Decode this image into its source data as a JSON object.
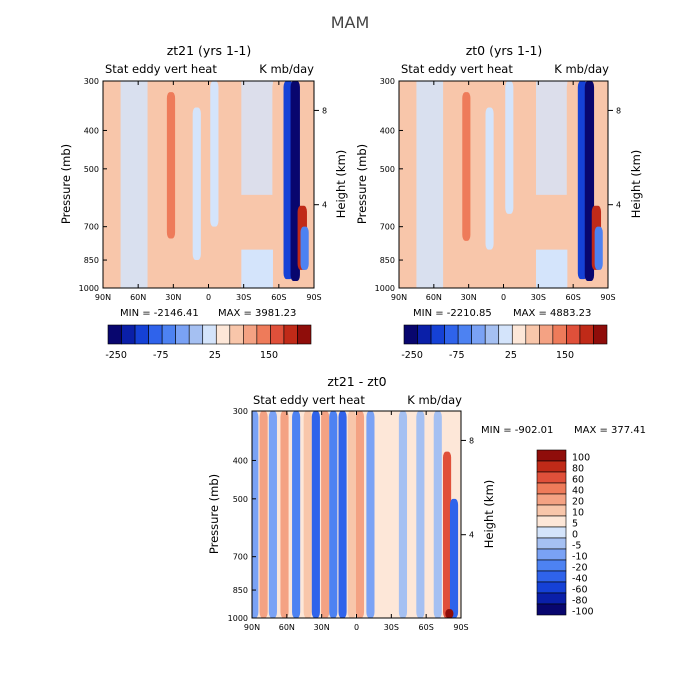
{
  "figure": {
    "title": "MAM"
  },
  "colors": {
    "scale": [
      "#08066e",
      "#0a1fa8",
      "#1541d6",
      "#2f63eb",
      "#4d82f2",
      "#7aa2f5",
      "#a5c0f2",
      "#d4e4fb",
      "#fde7d8",
      "#f8c6aa",
      "#f4a283",
      "#ee7b5a",
      "#e0503a",
      "#c02a18",
      "#8f0d0a"
    ]
  },
  "chart_data": [
    {
      "type": "heatmap",
      "id": "p1",
      "title": "zt21 (yrs 1-1)",
      "subtitle_left": "Stat eddy vert heat",
      "subtitle_right": "K mb/day",
      "xlabel": "",
      "ylabel": "Pressure (mb)",
      "y2label": "Height (km)",
      "x_ticks": [
        "90N",
        "60N",
        "30N",
        "0",
        "30S",
        "60S",
        "90S"
      ],
      "x_range": [
        90,
        -90
      ],
      "y_ticks": [
        "300",
        "400",
        "500",
        "700",
        "850",
        "1000"
      ],
      "y_range_mb": [
        300,
        1000
      ],
      "y_scale": "log",
      "y2_ticks": [
        "8",
        "4"
      ],
      "min_label": "MIN = -2146.41",
      "max_label": "MAX = 3981.23",
      "colorbar_labels": [
        "-250",
        "-75",
        "25",
        "150"
      ],
      "features": [
        {
          "lat": 32,
          "p_range": [
            320,
            750
          ],
          "value": 60
        },
        {
          "lat": 20,
          "p_range": [
            550,
            900
          ],
          "value": 15
        },
        {
          "lat": 10,
          "p_range": [
            350,
            850
          ],
          "value": -10
        },
        {
          "lat": -5,
          "p_range": [
            300,
            700
          ],
          "value": -15
        },
        {
          "lat": -58,
          "p_range": [
            300,
            700
          ],
          "value": 15
        },
        {
          "lat": -68,
          "p_range": [
            300,
            950
          ],
          "value": -150
        },
        {
          "lat": -74,
          "p_range": [
            300,
            960
          ],
          "value": -250
        },
        {
          "lat": -80,
          "p_range": [
            620,
            900
          ],
          "value": 150
        },
        {
          "lat": -82,
          "p_range": [
            700,
            900
          ],
          "value": -80
        }
      ]
    },
    {
      "type": "heatmap",
      "id": "p2",
      "title": "zt0 (yrs 1-1)",
      "subtitle_left": "Stat eddy vert heat",
      "subtitle_right": "K mb/day",
      "xlabel": "",
      "ylabel": "Pressure (mb)",
      "y2label": "Height (km)",
      "x_ticks": [
        "90N",
        "60N",
        "30N",
        "0",
        "30S",
        "60S",
        "90S"
      ],
      "x_range": [
        90,
        -90
      ],
      "y_ticks": [
        "300",
        "400",
        "500",
        "700",
        "850",
        "1000"
      ],
      "y_range_mb": [
        300,
        1000
      ],
      "y_scale": "log",
      "y2_ticks": [
        "8",
        "4"
      ],
      "min_label": "MIN = -2210.85",
      "max_label": "MAX = 4883.23",
      "colorbar_labels": [
        "-250",
        "-75",
        "25",
        "150"
      ],
      "features": [
        {
          "lat": 32,
          "p_range": [
            320,
            760
          ],
          "value": 70
        },
        {
          "lat": 20,
          "p_range": [
            550,
            900
          ],
          "value": 15
        },
        {
          "lat": 12,
          "p_range": [
            350,
            800
          ],
          "value": -10
        },
        {
          "lat": -5,
          "p_range": [
            300,
            650
          ],
          "value": -10
        },
        {
          "lat": -58,
          "p_range": [
            300,
            700
          ],
          "value": 15
        },
        {
          "lat": -68,
          "p_range": [
            300,
            950
          ],
          "value": -150
        },
        {
          "lat": -74,
          "p_range": [
            300,
            960
          ],
          "value": -250
        },
        {
          "lat": -80,
          "p_range": [
            620,
            900
          ],
          "value": 150
        },
        {
          "lat": -82,
          "p_range": [
            700,
            900
          ],
          "value": -80
        }
      ]
    },
    {
      "type": "heatmap",
      "id": "p3",
      "title": "zt21 - zt0",
      "subtitle_left": "Stat eddy vert heat",
      "subtitle_right": "K mb/day",
      "xlabel": "",
      "ylabel": "Pressure (mb)",
      "y2label": "Height (km)",
      "x_ticks": [
        "90N",
        "60N",
        "30N",
        "0",
        "30S",
        "60S",
        "90S"
      ],
      "x_range": [
        90,
        -90
      ],
      "y_ticks": [
        "300",
        "400",
        "500",
        "700",
        "850",
        "1000"
      ],
      "y_range_mb": [
        300,
        1000
      ],
      "y_scale": "log",
      "y2_ticks": [
        "8",
        "4"
      ],
      "min_label": "MIN = -902.01",
      "max_label": "MAX = 377.41",
      "colorbar_labels": [
        "100",
        "80",
        "60",
        "40",
        "20",
        "10",
        "5",
        "0",
        "-5",
        "-10",
        "-20",
        "-40",
        "-60",
        "-80",
        "-100"
      ],
      "features": [
        {
          "lat": 88,
          "p_range": [
            300,
            1000
          ],
          "value": -15
        },
        {
          "lat": 80,
          "p_range": [
            300,
            1000
          ],
          "value": 20
        },
        {
          "lat": 72,
          "p_range": [
            300,
            1000
          ],
          "value": -15
        },
        {
          "lat": 62,
          "p_range": [
            300,
            1000
          ],
          "value": 15
        },
        {
          "lat": 52,
          "p_range": [
            300,
            1000
          ],
          "value": -20
        },
        {
          "lat": 42,
          "p_range": [
            300,
            1000
          ],
          "value": 10
        },
        {
          "lat": 35,
          "p_range": [
            300,
            1000
          ],
          "value": -40
        },
        {
          "lat": 27,
          "p_range": [
            300,
            1000
          ],
          "value": 20
        },
        {
          "lat": 20,
          "p_range": [
            300,
            1000
          ],
          "value": -20
        },
        {
          "lat": 12,
          "p_range": [
            300,
            1000
          ],
          "value": -40
        },
        {
          "lat": 4,
          "p_range": [
            300,
            1000
          ],
          "value": 10
        },
        {
          "lat": -3,
          "p_range": [
            300,
            1000
          ],
          "value": 20
        },
        {
          "lat": -12,
          "p_range": [
            300,
            1000
          ],
          "value": -10
        },
        {
          "lat": -25,
          "p_range": [
            300,
            1000
          ],
          "value": 5
        },
        {
          "lat": -40,
          "p_range": [
            300,
            1000
          ],
          "value": -5
        },
        {
          "lat": -55,
          "p_range": [
            300,
            1000
          ],
          "value": -5
        },
        {
          "lat": -70,
          "p_range": [
            300,
            1000
          ],
          "value": -5
        },
        {
          "lat": -78,
          "p_range": [
            380,
            1000
          ],
          "value": 60
        },
        {
          "lat": -84,
          "p_range": [
            500,
            1000
          ],
          "value": -40
        },
        {
          "lat": -80,
          "p_range": [
            950,
            1000
          ],
          "value": 100
        }
      ]
    }
  ]
}
